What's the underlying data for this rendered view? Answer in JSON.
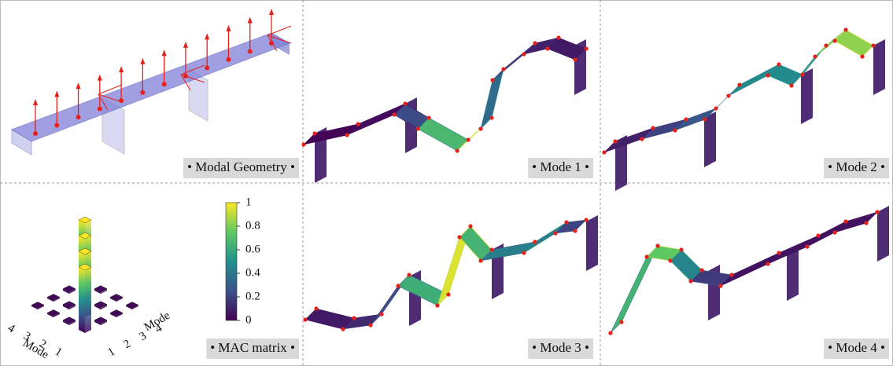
{
  "panels": [
    {
      "label": "• Modal Geometry •"
    },
    {
      "label": "• Mode 1 •"
    },
    {
      "label": "• Mode 2 •"
    },
    {
      "label": "• Mode 3 •"
    },
    {
      "label": "• Mode 4 •"
    }
  ],
  "mac_matrix": {
    "label": "• MAC matrix •",
    "x_label": "Mode",
    "y_label": "Mode",
    "modes": [
      "1",
      "2",
      "3",
      "4"
    ],
    "values": [
      [
        1,
        0.03,
        0.02,
        0.02
      ],
      [
        0.03,
        1,
        0.03,
        0.02
      ],
      [
        0.02,
        0.03,
        1,
        0.03
      ],
      [
        0.02,
        0.02,
        0.03,
        1
      ]
    ],
    "colorbar": {
      "ylim": [
        0,
        1
      ],
      "yticks": [
        0,
        0.2,
        0.4,
        0.6,
        0.8,
        1
      ]
    }
  }
}
